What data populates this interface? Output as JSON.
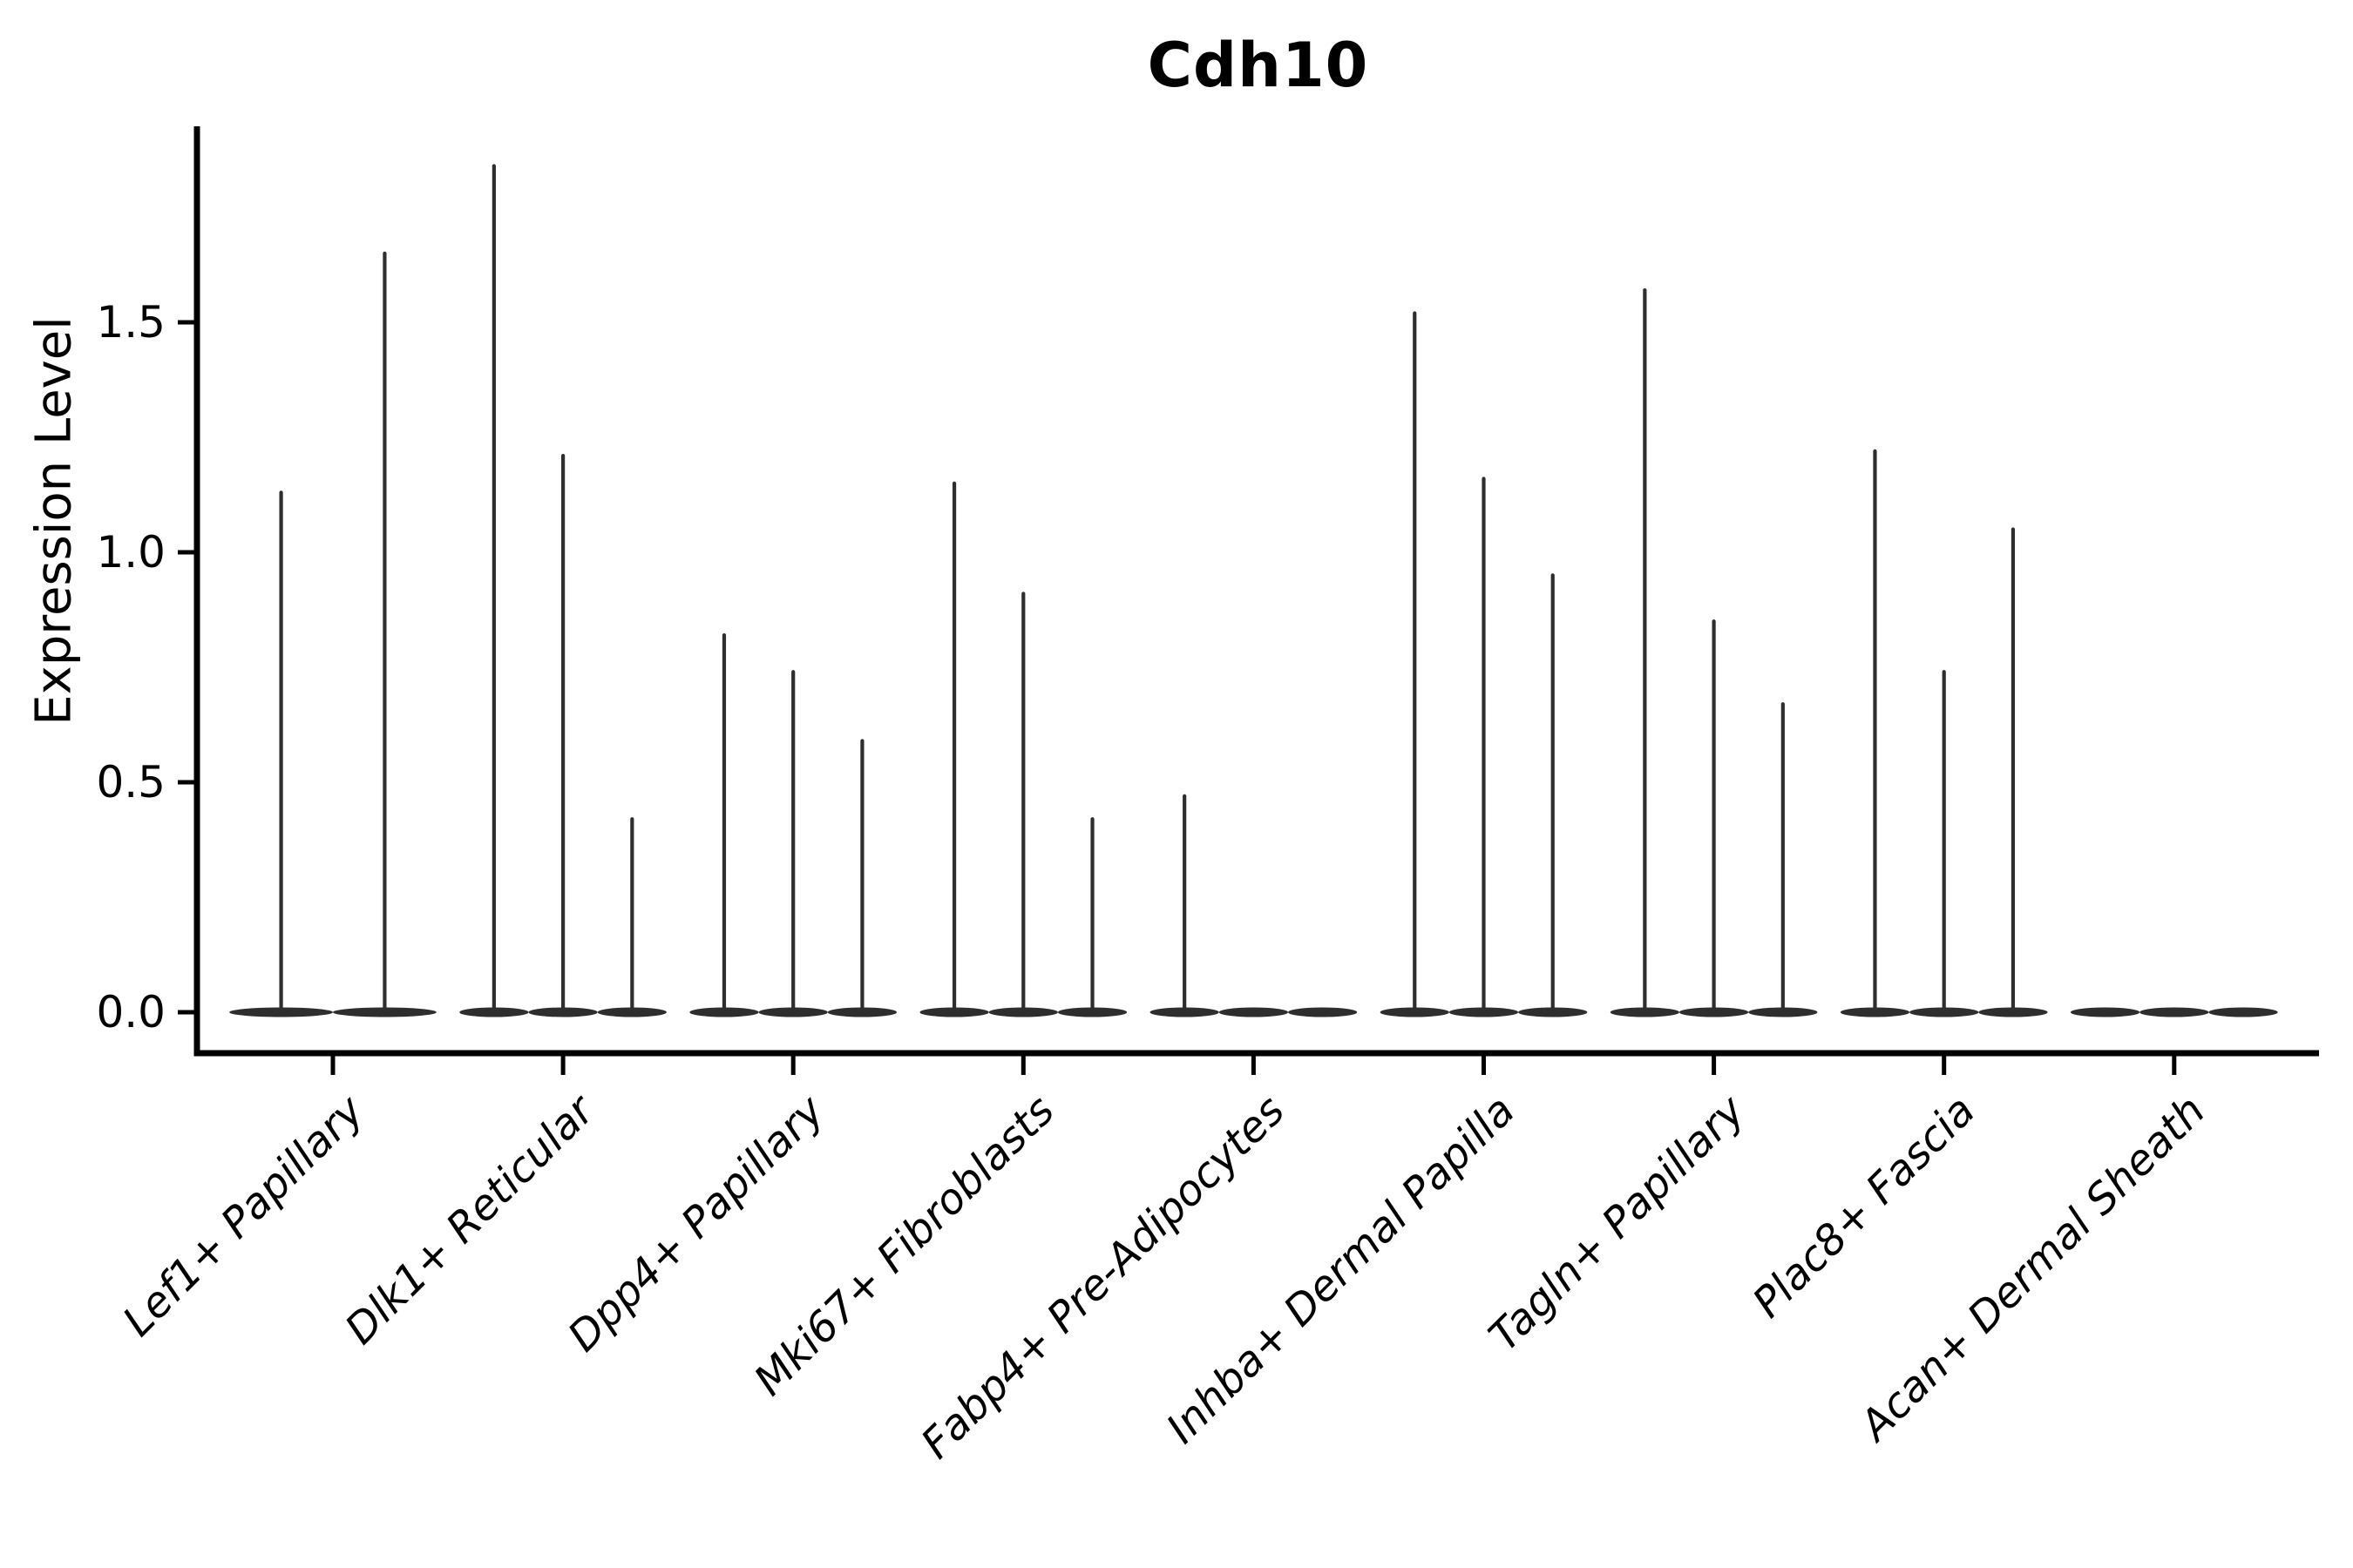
{
  "chart_data": {
    "type": "violin",
    "title": "Cdh10",
    "ylabel": "Expression Level",
    "xlabel": "",
    "ylim": [
      -0.09,
      1.93
    ],
    "yticks": [
      {
        "label": "0.0",
        "value": 0.0
      },
      {
        "label": "0.5",
        "value": 0.5
      },
      {
        "label": "1.0",
        "value": 1.0
      },
      {
        "label": "1.5",
        "value": 1.5
      }
    ],
    "grid": false,
    "legend_position": "none",
    "violin_color": "#2e2e2e",
    "axis_color": "#000000",
    "categories": [
      "Lef1+ Papillary",
      "Dlk1+ Reticular",
      "Dpp4+ Papillary",
      "Mki67+ Fibroblasts",
      "Fabp4+ Pre-Adipocytes",
      "Inhba+ Dermal Papilla",
      "Tagln+ Papillary",
      "Plac8+ Fascia",
      "Acan+ Dermal Sheath"
    ],
    "groups": [
      {
        "category": "Lef1+ Papillary",
        "violin_maxima": [
          1.13,
          1.65
        ]
      },
      {
        "category": "Dlk1+ Reticular",
        "violin_maxima": [
          1.84,
          1.21,
          0.42
        ]
      },
      {
        "category": "Dpp4+ Papillary",
        "violin_maxima": [
          0.82,
          0.74,
          0.59
        ]
      },
      {
        "category": "Mki67+ Fibroblasts",
        "violin_maxima": [
          1.15,
          0.91,
          0.42
        ]
      },
      {
        "category": "Fabp4+ Pre-Adipocytes",
        "violin_maxima": [
          0.47,
          0.0,
          0.0
        ]
      },
      {
        "category": "Inhba+ Dermal Papilla",
        "violin_maxima": [
          1.52,
          1.16,
          0.95
        ]
      },
      {
        "category": "Tagln+ Papillary",
        "violin_maxima": [
          1.57,
          0.85,
          0.67
        ]
      },
      {
        "category": "Plac8+ Fascia",
        "violin_maxima": [
          1.22,
          0.74,
          1.05
        ]
      },
      {
        "category": "Acan+ Dermal Sheath",
        "violin_maxima": [
          0.0,
          0.0,
          0.0
        ]
      }
    ]
  }
}
